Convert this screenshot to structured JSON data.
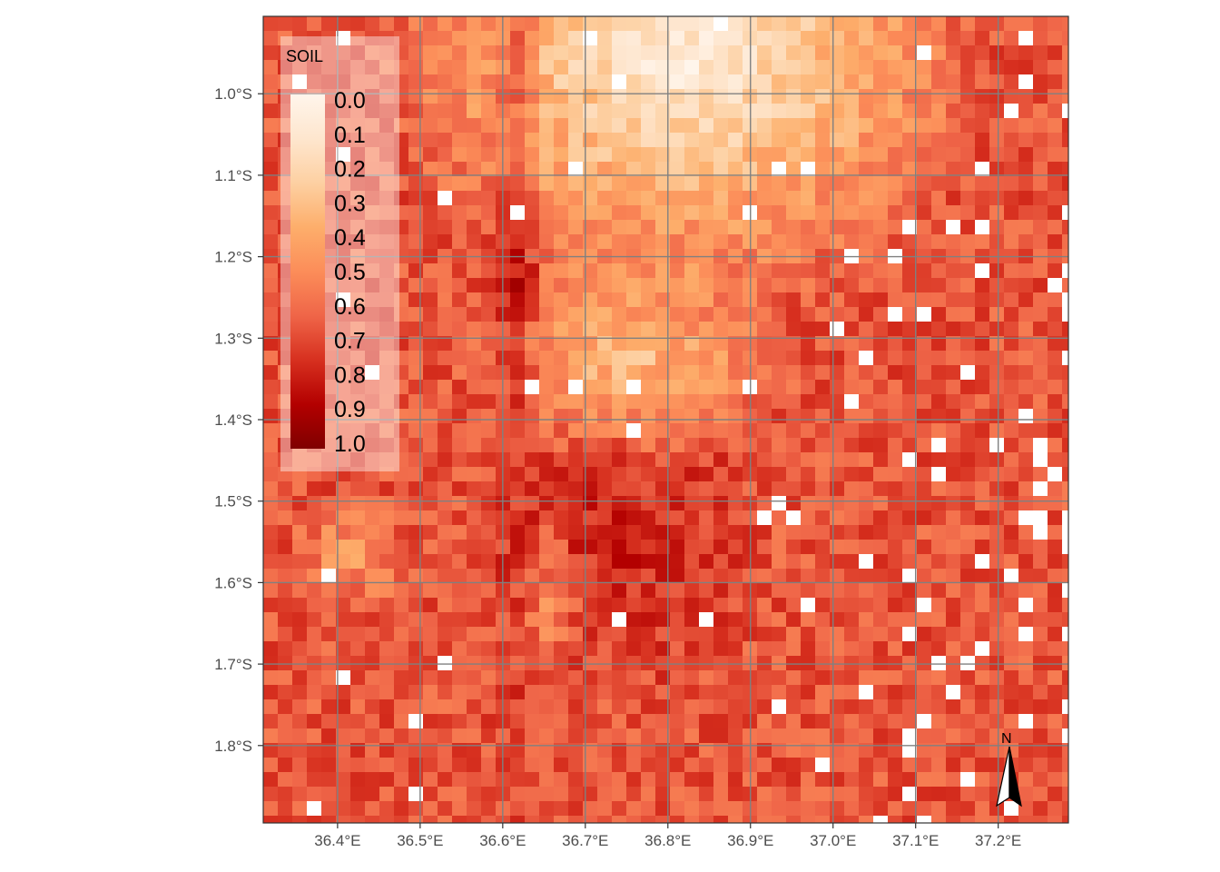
{
  "map": {
    "variable": "SOIL",
    "extent": {
      "lon_min": 36.31,
      "lon_max": 37.285,
      "lat_min": -1.895,
      "lat_max": -0.905
    },
    "x_ticks": [
      {
        "value": 36.4,
        "label": "36.4°E"
      },
      {
        "value": 36.5,
        "label": "36.5°E"
      },
      {
        "value": 36.6,
        "label": "36.6°E"
      },
      {
        "value": 36.7,
        "label": "36.7°E"
      },
      {
        "value": 36.8,
        "label": "36.8°E"
      },
      {
        "value": 36.9,
        "label": "36.9°E"
      },
      {
        "value": 37.0,
        "label": "37.0°E"
      },
      {
        "value": 37.1,
        "label": "37.1°E"
      },
      {
        "value": 37.2,
        "label": "37.2°E"
      }
    ],
    "y_ticks": [
      {
        "value": -1.0,
        "label": "1.0°S"
      },
      {
        "value": -1.1,
        "label": "1.1°S"
      },
      {
        "value": -1.2,
        "label": "1.2°S"
      },
      {
        "value": -1.3,
        "label": "1.3°S"
      },
      {
        "value": -1.4,
        "label": "1.4°S"
      },
      {
        "value": -1.5,
        "label": "1.5°S"
      },
      {
        "value": -1.6,
        "label": "1.6°S"
      },
      {
        "value": -1.7,
        "label": "1.7°S"
      },
      {
        "value": -1.8,
        "label": "1.8°S"
      }
    ],
    "graticule_color": "#808080",
    "nodata_color": "#ffffff",
    "north_arrow_label": "N"
  },
  "legend": {
    "title": "SOIL",
    "placement": "top-left",
    "labels": [
      "0.0",
      "0.1",
      "0.2",
      "0.3",
      "0.4",
      "0.5",
      "0.6",
      "0.7",
      "0.8",
      "0.9",
      "1.0"
    ],
    "palette": [
      "#fff5eb",
      "#fee6ce",
      "#fdd0a2",
      "#fdae6b",
      "#fc8d59",
      "#ef6548",
      "#d7301f",
      "#b30000",
      "#7f0000"
    ]
  }
}
